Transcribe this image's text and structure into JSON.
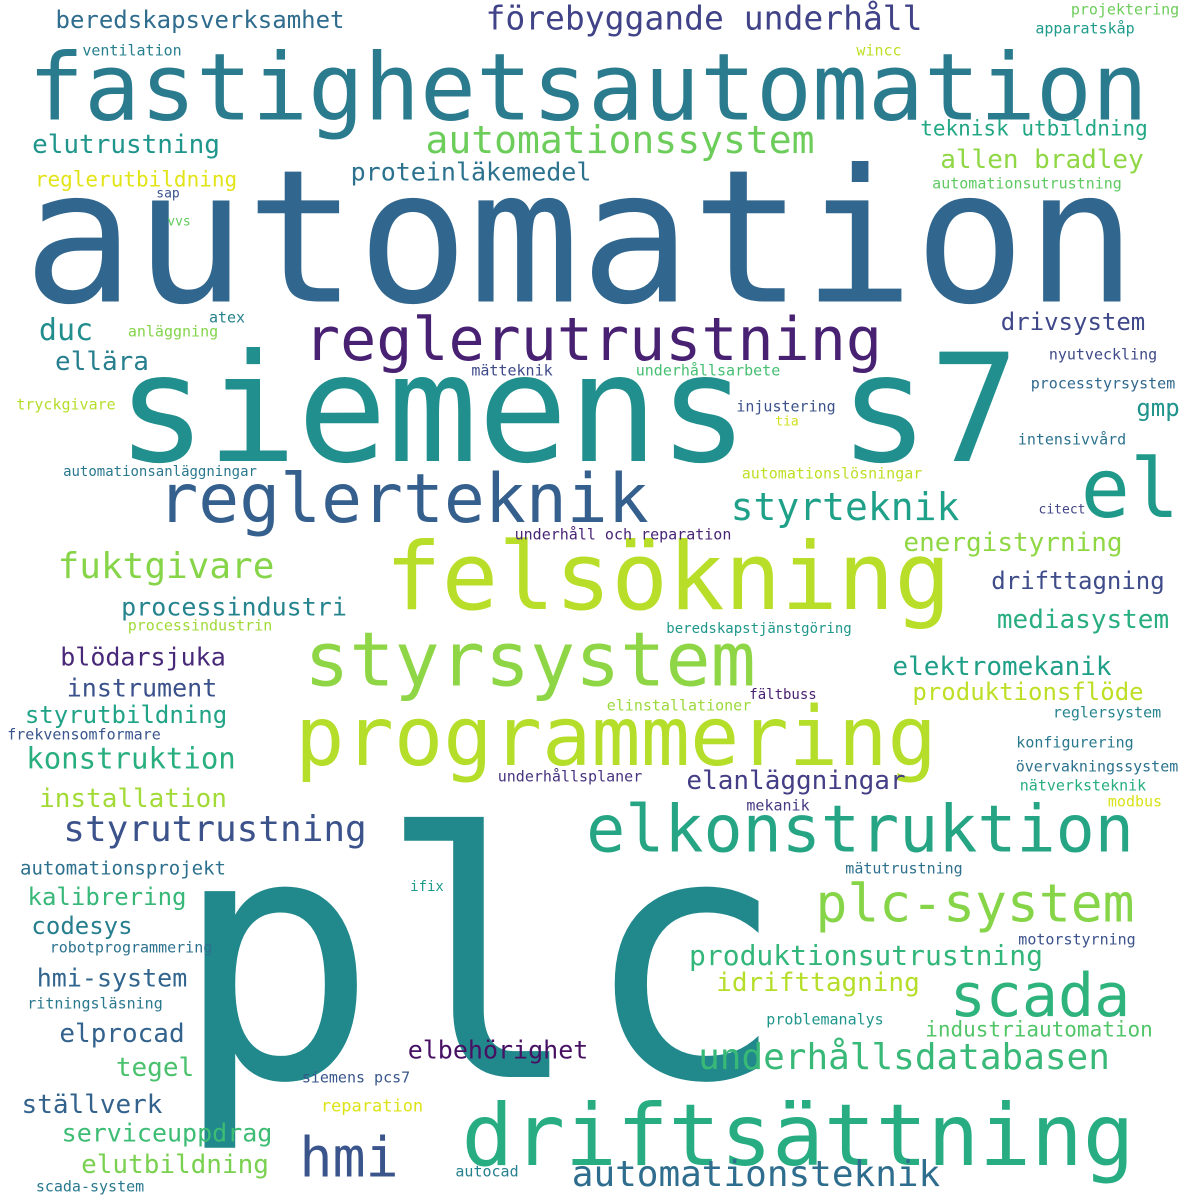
{
  "words": [
    {
      "text": "plc",
      "color": "#21888c"
    },
    {
      "text": "automation",
      "color": "#31678e"
    },
    {
      "text": "siemens s7",
      "color": "#218f8d"
    },
    {
      "text": "fastighetsautomation",
      "color": "#2b7b8e"
    },
    {
      "text": "felsökning",
      "color": "#b8de29"
    },
    {
      "text": "programmering",
      "color": "#b5de2b"
    },
    {
      "text": "driftsättning",
      "color": "#27ad81"
    },
    {
      "text": "elkonstruktion",
      "color": "#25a584"
    },
    {
      "text": "styrsystem",
      "color": "#8ed645"
    },
    {
      "text": "reglerteknik",
      "color": "#355f8d"
    },
    {
      "text": "reglerutrustning",
      "color": "#482173"
    },
    {
      "text": "el",
      "color": "#1f9a8a"
    },
    {
      "text": "scada",
      "color": "#2eb37c"
    },
    {
      "text": "plc-system",
      "color": "#86d549"
    },
    {
      "text": "hmi",
      "color": "#3a548c"
    },
    {
      "text": "automationssystem",
      "color": "#6ccd5a"
    },
    {
      "text": "styrutrustning",
      "color": "#3b528b"
    },
    {
      "text": "förebyggande underhåll",
      "color": "#404387"
    },
    {
      "text": "styrteknik",
      "color": "#1fa088"
    },
    {
      "text": "underhållsdatabasen",
      "color": "#38b977"
    },
    {
      "text": "automationsteknik",
      "color": "#2e6d8e"
    },
    {
      "text": "fuktgivare",
      "color": "#86d549"
    },
    {
      "text": "produktionsutrustning",
      "color": "#32b67a"
    },
    {
      "text": "beredskapsverksamhet",
      "color": "#2f6c8e"
    },
    {
      "text": "elutrustning",
      "color": "#1f958b"
    },
    {
      "text": "allen bradley",
      "color": "#8fd744"
    },
    {
      "text": "teknisk utbildning",
      "color": "#22a785"
    },
    {
      "text": "proteinläkemedel",
      "color": "#2c728e"
    },
    {
      "text": "reglerutbildning",
      "color": "#e2e418"
    },
    {
      "text": "duc",
      "color": "#218e8d"
    },
    {
      "text": "drivsystem",
      "color": "#3f4889"
    },
    {
      "text": "ellära",
      "color": "#277f8e"
    },
    {
      "text": "energistyrning",
      "color": "#8fd744"
    },
    {
      "text": "drifttagning",
      "color": "#3e4c8a"
    },
    {
      "text": "processindustri",
      "color": "#25848e"
    },
    {
      "text": "mediasystem",
      "color": "#28ae80"
    },
    {
      "text": "blödarsjuka",
      "color": "#482878"
    },
    {
      "text": "elektromekanik",
      "color": "#1f9f88"
    },
    {
      "text": "instrument",
      "color": "#3b518b"
    },
    {
      "text": "produktionsflöde",
      "color": "#bddf26"
    },
    {
      "text": "styrutbildning",
      "color": "#20a386"
    },
    {
      "text": "konstruktion",
      "color": "#29af7f"
    },
    {
      "text": "elanläggningar",
      "color": "#433e85"
    },
    {
      "text": "installation",
      "color": "#a2da37"
    },
    {
      "text": "automationsprojekt",
      "color": "#2d708e"
    },
    {
      "text": "kalibrering",
      "color": "#37b878"
    },
    {
      "text": "codesys",
      "color": "#277e8e"
    },
    {
      "text": "idrifttagning",
      "color": "#b5de2b"
    },
    {
      "text": "hmi-system",
      "color": "#31658e"
    },
    {
      "text": "elprocad",
      "color": "#33638d"
    },
    {
      "text": "industriautomation",
      "color": "#52c569"
    },
    {
      "text": "tegel",
      "color": "#4ac16d"
    },
    {
      "text": "elbehörighet",
      "color": "#471063"
    },
    {
      "text": "ställverk",
      "color": "#33628d"
    },
    {
      "text": "serviceuppdrag",
      "color": "#3dbc74"
    },
    {
      "text": "elutbildning",
      "color": "#7ad151"
    },
    {
      "text": "gmp",
      "color": "#1f948c"
    },
    {
      "text": "ventilation",
      "color": "#277f8e"
    },
    {
      "text": "wincc",
      "color": "#bddf26"
    },
    {
      "text": "projektering",
      "color": "#6ccd5a"
    },
    {
      "text": "apparatskåp",
      "color": "#1e9b8a"
    },
    {
      "text": "automationsutrustning",
      "color": "#5ec962"
    },
    {
      "text": "sap",
      "color": "#3b528b"
    },
    {
      "text": "vvs",
      "color": "#63cb5f"
    },
    {
      "text": "anläggning",
      "color": "#84d44b"
    },
    {
      "text": "atex",
      "color": "#26818e"
    },
    {
      "text": "nyutveckling",
      "color": "#3e4a89"
    },
    {
      "text": "mätteknik",
      "color": "#3e4a89"
    },
    {
      "text": "underhållsarbete",
      "color": "#44bf70"
    },
    {
      "text": "tryckgivare",
      "color": "#b5de2b"
    },
    {
      "text": "injustering",
      "color": "#3b528b"
    },
    {
      "text": "processtyrsystem",
      "color": "#31688e"
    },
    {
      "text": "tia",
      "color": "#d0e11c"
    },
    {
      "text": "intensivvård",
      "color": "#2c728e"
    },
    {
      "text": "automationsanläggningar",
      "color": "#2a788e"
    },
    {
      "text": "automationslösningar",
      "color": "#bddf26"
    },
    {
      "text": "citect",
      "color": "#414487"
    },
    {
      "text": "underhåll och reparation",
      "color": "#482475"
    },
    {
      "text": "processindustrin",
      "color": "#a0da39"
    },
    {
      "text": "beredskapstjänstgöring",
      "color": "#1f978b"
    },
    {
      "text": "fältbuss",
      "color": "#481f70"
    },
    {
      "text": "elinstallationer",
      "color": "#9bd93c"
    },
    {
      "text": "reglersystem",
      "color": "#25848e"
    },
    {
      "text": "frekvensomformare",
      "color": "#39568c"
    },
    {
      "text": "konfigurering",
      "color": "#2a788e"
    },
    {
      "text": "underhållsplaner",
      "color": "#46337f"
    },
    {
      "text": "övervakningssystem",
      "color": "#2c728e"
    },
    {
      "text": "nätverksteknik",
      "color": "#26ad81"
    },
    {
      "text": "mekanik",
      "color": "#443983"
    },
    {
      "text": "modbus",
      "color": "#d8e219"
    },
    {
      "text": "mätutrustning",
      "color": "#2d708e"
    },
    {
      "text": "ifix",
      "color": "#1e9b8a"
    },
    {
      "text": "robotprogrammering",
      "color": "#2c728e"
    },
    {
      "text": "motorstyrning",
      "color": "#3b528b"
    },
    {
      "text": "ritningsläsning",
      "color": "#2a788e"
    },
    {
      "text": "problemanalys",
      "color": "#1f968b"
    },
    {
      "text": "siemens pcs7",
      "color": "#39568c"
    },
    {
      "text": "reparation",
      "color": "#dde318"
    },
    {
      "text": "autocad",
      "color": "#26818e"
    },
    {
      "text": "scada-system",
      "color": "#29798e"
    }
  ]
}
